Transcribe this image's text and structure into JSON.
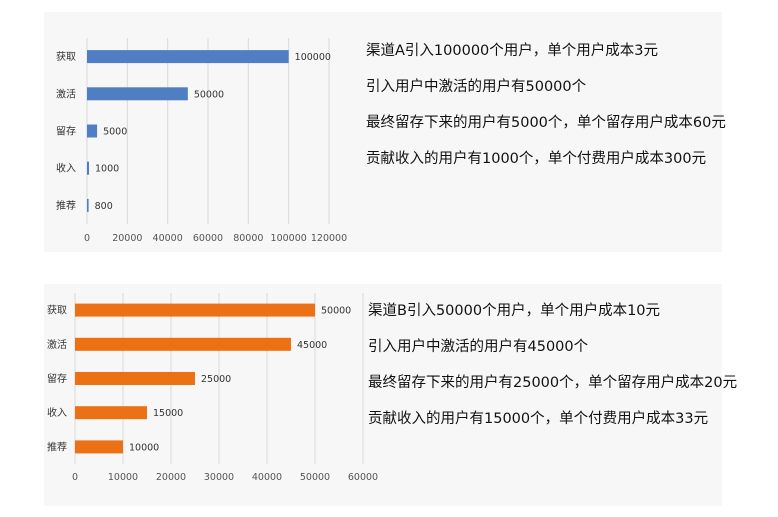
{
  "colors": {
    "chart_a_bar": "#4f7fc2",
    "chart_b_bar": "#ec7014",
    "grid": "#d9d9d9"
  },
  "chart_data": [
    {
      "type": "bar",
      "orientation": "horizontal",
      "title": "",
      "xlabel": "",
      "ylabel": "",
      "categories": [
        "获取",
        "激活",
        "留存",
        "收入",
        "推荐"
      ],
      "values": [
        100000,
        50000,
        5000,
        1000,
        800
      ],
      "value_labels": [
        "100000",
        "50000",
        "5000",
        "1000",
        "800"
      ],
      "xlim": [
        0,
        120000
      ],
      "ticks": [
        0,
        20000,
        40000,
        60000,
        80000,
        100000,
        120000
      ],
      "tick_labels": [
        "0",
        "20000",
        "40000",
        "60000",
        "80000",
        "100000",
        "120000"
      ],
      "grid": true,
      "legend": "none"
    },
    {
      "type": "bar",
      "orientation": "horizontal",
      "title": "",
      "xlabel": "",
      "ylabel": "",
      "categories": [
        "获取",
        "激活",
        "留存",
        "收入",
        "推荐"
      ],
      "values": [
        50000,
        45000,
        25000,
        15000,
        10000
      ],
      "value_labels": [
        "50000",
        "45000",
        "25000",
        "15000",
        "10000"
      ],
      "xlim": [
        0,
        60000
      ],
      "ticks": [
        0,
        10000,
        20000,
        30000,
        40000,
        50000,
        60000
      ],
      "tick_labels": [
        "0",
        "10000",
        "20000",
        "30000",
        "40000",
        "50000",
        "60000"
      ],
      "grid": true,
      "legend": "none"
    }
  ],
  "notes_a": [
    "渠道A引入100000个用户，单个用户成本3元",
    "引入用户中激活的用户有50000个",
    "最终留存下来的用户有5000个，单个留存用户成本60元",
    "贡献收入的用户有1000个，单个付费用户成本300元"
  ],
  "notes_b": [
    "渠道B引入50000个用户，单个用户成本10元",
    "引入用户中激活的用户有45000个",
    "最终留存下来的用户有25000个，单个留存用户成本20元",
    "贡献收入的用户有15000个，单个付费用户成本33元"
  ]
}
